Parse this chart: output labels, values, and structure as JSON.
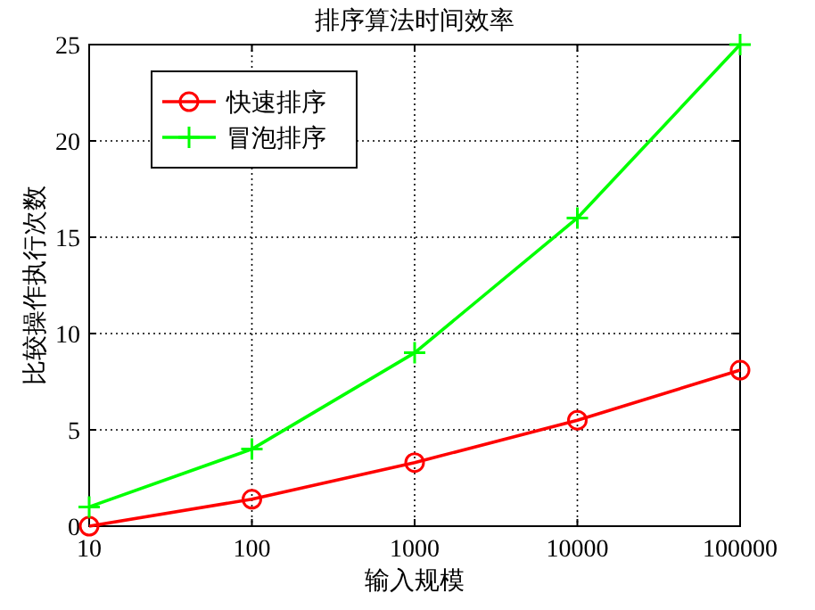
{
  "chart_data": {
    "type": "line",
    "title": "排序算法时间效率",
    "xlabel": "输入规模",
    "ylabel": "比较操作执行次数",
    "x": [
      10,
      100,
      1000,
      10000,
      100000
    ],
    "series": [
      {
        "name": "快速排序",
        "color": "#ff0000",
        "marker": "circle",
        "values": [
          0,
          1.4,
          3.3,
          5.5,
          8.1
        ]
      },
      {
        "name": "冒泡排序",
        "color": "#00ff00",
        "marker": "cross",
        "values": [
          1,
          4,
          9,
          16,
          25
        ]
      }
    ],
    "log": "x",
    "xlim": [
      10,
      100000
    ],
    "xticks": [
      10,
      100,
      1000,
      10000,
      100000
    ],
    "ylim": [
      0,
      25
    ],
    "yticks": [
      0,
      5,
      10,
      15,
      20,
      25
    ],
    "grid": true,
    "legend": "top left",
    "line_style": "solid"
  }
}
